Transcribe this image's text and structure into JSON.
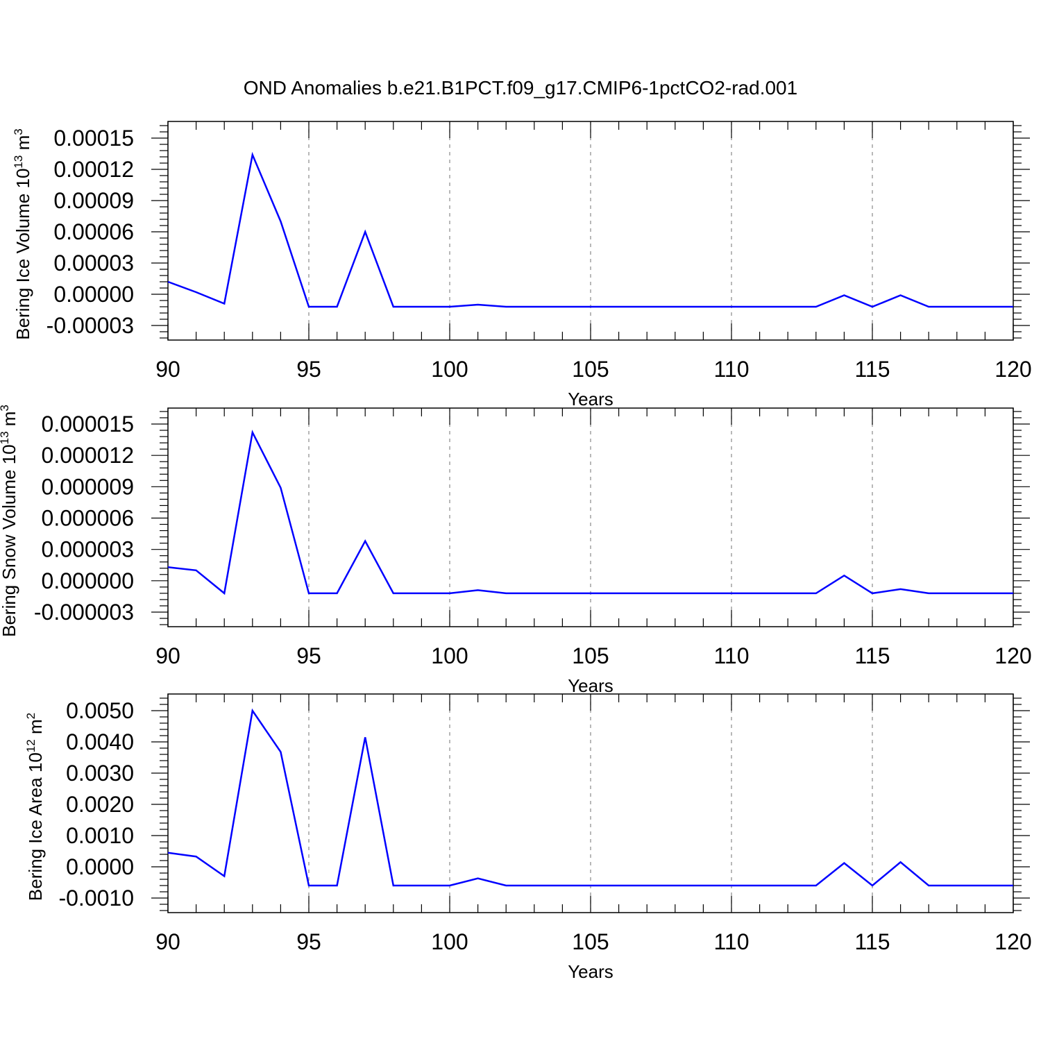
{
  "title": "OND Anomalies b.e21.B1PCT.f09_g17.CMIP6-1pctCO2-rad.001",
  "line_color": "#0000ff",
  "chart_data": [
    {
      "type": "line",
      "xlabel": "Years",
      "ylabel_main": "Bering Ice Volume 10",
      "ylabel_exp": "13",
      "ylabel_unit": " m",
      "ylabel_unit_exp": "3",
      "xlim": [
        90,
        120
      ],
      "ylim": [
        -3e-05,
        0.00015
      ],
      "x_ticks": [
        90,
        95,
        100,
        105,
        110,
        115,
        120
      ],
      "x_tick_labels": [
        "90",
        "95",
        "100",
        "105",
        "110",
        "115",
        "120"
      ],
      "y_ticks": [
        -3e-05,
        0,
        3e-05,
        6e-05,
        9e-05,
        0.00012,
        0.00015
      ],
      "y_tick_labels": [
        "-0.00003",
        "0.00000",
        "0.00003",
        "0.00006",
        "0.00009",
        "0.00012",
        "0.00015"
      ],
      "grid": "dashed vertical at major x ticks",
      "series": [
        {
          "x": [
            90,
            91,
            92,
            93,
            94,
            95,
            96,
            97,
            98,
            99,
            100,
            101,
            102,
            103,
            104,
            105,
            106,
            107,
            108,
            109,
            110,
            111,
            112,
            113,
            114,
            115,
            116,
            117,
            118,
            119,
            120
          ],
          "values": [
            1.2e-05,
            2e-06,
            -9e-06,
            0.000134,
            7e-05,
            -1.2e-05,
            -1.2e-05,
            6e-05,
            -1.2e-05,
            -1.2e-05,
            -1.2e-05,
            -1e-05,
            -1.2e-05,
            -1.2e-05,
            -1.2e-05,
            -1.2e-05,
            -1.2e-05,
            -1.2e-05,
            -1.2e-05,
            -1.2e-05,
            -1.2e-05,
            -1.2e-05,
            -1.2e-05,
            -1.2e-05,
            -1e-06,
            -1.2e-05,
            -1e-06,
            -1.2e-05,
            -1.2e-05,
            -1.2e-05,
            -1.2e-05
          ]
        }
      ]
    },
    {
      "type": "line",
      "xlabel": "Years",
      "ylabel_main": "Bering Snow Volume 10",
      "ylabel_exp": "13",
      "ylabel_unit": " m",
      "ylabel_unit_exp": "3",
      "xlim": [
        90,
        120
      ],
      "ylim": [
        -3e-06,
        1.5e-05
      ],
      "x_ticks": [
        90,
        95,
        100,
        105,
        110,
        115,
        120
      ],
      "x_tick_labels": [
        "90",
        "95",
        "100",
        "105",
        "110",
        "115",
        "120"
      ],
      "y_ticks": [
        -3e-06,
        0,
        3e-06,
        6e-06,
        9e-06,
        1.2e-05,
        1.5e-05
      ],
      "y_tick_labels": [
        "-0.000003",
        "0.000000",
        "0.000003",
        "0.000006",
        "0.000009",
        "0.000012",
        "0.000015"
      ],
      "grid": "dashed vertical at major x ticks",
      "series": [
        {
          "x": [
            90,
            91,
            92,
            93,
            94,
            95,
            96,
            97,
            98,
            99,
            100,
            101,
            102,
            103,
            104,
            105,
            106,
            107,
            108,
            109,
            110,
            111,
            112,
            113,
            114,
            115,
            116,
            117,
            118,
            119,
            120
          ],
          "values": [
            1.3e-06,
            1e-06,
            -1.2e-06,
            1.42e-05,
            8.9e-06,
            -1.2e-06,
            -1.2e-06,
            3.8e-06,
            -1.2e-06,
            -1.2e-06,
            -1.2e-06,
            -9e-07,
            -1.2e-06,
            -1.2e-06,
            -1.2e-06,
            -1.2e-06,
            -1.2e-06,
            -1.2e-06,
            -1.2e-06,
            -1.2e-06,
            -1.2e-06,
            -1.2e-06,
            -1.2e-06,
            -1.2e-06,
            5e-07,
            -1.2e-06,
            -8e-07,
            -1.2e-06,
            -1.2e-06,
            -1.2e-06,
            -1.2e-06
          ]
        }
      ]
    },
    {
      "type": "line",
      "xlabel": "Years",
      "ylabel_main": "Bering Ice Area 10",
      "ylabel_exp": "12",
      "ylabel_unit": " m",
      "ylabel_unit_exp": "2",
      "xlim": [
        90,
        120
      ],
      "ylim": [
        -0.001,
        0.005
      ],
      "x_ticks": [
        90,
        95,
        100,
        105,
        110,
        115,
        120
      ],
      "x_tick_labels": [
        "90",
        "95",
        "100",
        "105",
        "110",
        "115",
        "120"
      ],
      "y_ticks": [
        -0.001,
        0,
        0.001,
        0.002,
        0.003,
        0.004,
        0.005
      ],
      "y_tick_labels": [
        "-0.0010",
        "0.0000",
        "0.0010",
        "0.0020",
        "0.0030",
        "0.0040",
        "0.0050"
      ],
      "grid": "dashed vertical at major x ticks",
      "series": [
        {
          "x": [
            90,
            91,
            92,
            93,
            94,
            95,
            96,
            97,
            98,
            99,
            100,
            101,
            102,
            103,
            104,
            105,
            106,
            107,
            108,
            109,
            110,
            111,
            112,
            113,
            114,
            115,
            116,
            117,
            118,
            119,
            120
          ],
          "values": [
            0.00045,
            0.00033,
            -0.0003,
            0.005,
            0.00368,
            -0.0006,
            -0.0006,
            0.00415,
            -0.0006,
            -0.0006,
            -0.0006,
            -0.00037,
            -0.0006,
            -0.0006,
            -0.0006,
            -0.0006,
            -0.0006,
            -0.0006,
            -0.0006,
            -0.0006,
            -0.0006,
            -0.0006,
            -0.0006,
            -0.0006,
            0.00012,
            -0.0006,
            0.00015,
            -0.0006,
            -0.0006,
            -0.0006,
            -0.0006
          ]
        }
      ]
    }
  ]
}
